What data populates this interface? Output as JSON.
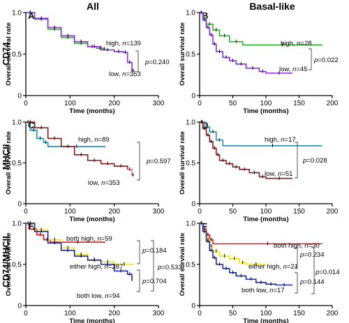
{
  "column_titles": [
    "All",
    "Basal-like"
  ],
  "row_titles": [
    "CD74",
    "MHCII",
    "CD74/MHCII"
  ],
  "colors": {
    "green": "#22b522",
    "purple": "#8a2be2",
    "teal": "#1d8fb0",
    "darkred": "#8b1a1a",
    "pink": "#f07a8a",
    "red": "#e8141a",
    "yellow": "#f2e600",
    "navy": "#1a2aa0",
    "black": "#000000"
  },
  "chart_data": [
    {
      "type": "line",
      "panel": "A",
      "title": "",
      "xlabel": "Time (months)",
      "ylabel": "Overall survival rate",
      "xlim": [
        0,
        300
      ],
      "ylim": [
        0,
        1.0
      ],
      "xticks": [
        0,
        100,
        200,
        300
      ],
      "yticks": [
        0,
        0.5,
        1.0
      ],
      "series": [
        {
          "name": "high, n=139",
          "color": "#22b522",
          "x": [
            0,
            20,
            50,
            80,
            110,
            140,
            160,
            175,
            180
          ],
          "y": [
            1.0,
            0.92,
            0.8,
            0.7,
            0.63,
            0.59,
            0.57,
            0.56,
            0.56
          ]
        },
        {
          "name": "low, n=353",
          "color": "#8a2be2",
          "x": [
            0,
            20,
            50,
            80,
            110,
            140,
            170,
            200,
            220,
            230,
            240,
            245
          ],
          "y": [
            1.0,
            0.93,
            0.82,
            0.72,
            0.65,
            0.59,
            0.55,
            0.53,
            0.52,
            0.4,
            0.3,
            0.3
          ]
        }
      ],
      "annotations": [
        {
          "text": "high, ",
          "n": "n",
          "rest": "=139"
        },
        {
          "text": "low, ",
          "n": "n",
          "rest": "=353"
        },
        {
          "p": "p",
          "rest": "=0.240"
        }
      ]
    },
    {
      "type": "line",
      "panel": "B",
      "title": "",
      "xlabel": "Time (months)",
      "ylabel": "Overall survival rate",
      "xlim": [
        0,
        200
      ],
      "ylim": [
        0,
        1.0
      ],
      "xticks": [
        0,
        50,
        100,
        150,
        200
      ],
      "yticks": [
        0,
        0.5,
        1.0
      ],
      "series": [
        {
          "name": "high, n=28",
          "color": "#22b522",
          "x": [
            0,
            5,
            10,
            20,
            30,
            45,
            65,
            185
          ],
          "y": [
            1.0,
            0.93,
            0.86,
            0.79,
            0.72,
            0.65,
            0.61,
            0.61
          ]
        },
        {
          "name": "low, n=45",
          "color": "#8a2be2",
          "x": [
            0,
            5,
            10,
            15,
            20,
            25,
            35,
            45,
            55,
            70,
            90,
            100,
            140
          ],
          "y": [
            1.0,
            0.91,
            0.82,
            0.73,
            0.62,
            0.53,
            0.46,
            0.42,
            0.38,
            0.33,
            0.29,
            0.27,
            0.27
          ]
        }
      ],
      "annotations": [
        {
          "text": "high, ",
          "n": "n",
          "rest": "=28"
        },
        {
          "text": "low, ",
          "n": "n",
          "rest": "=45"
        },
        {
          "p": "p",
          "rest": "=0.022"
        }
      ]
    },
    {
      "type": "line",
      "panel": "C",
      "title": "",
      "xlabel": "Time (months)",
      "ylabel": "Overall survival rate",
      "xlim": [
        0,
        300
      ],
      "ylim": [
        0,
        1.0
      ],
      "xticks": [
        0,
        100,
        200,
        300
      ],
      "yticks": [
        0,
        0.5,
        1.0
      ],
      "series": [
        {
          "name": "high, n=89",
          "color": "#1d8fb0",
          "x": [
            0,
            10,
            25,
            40,
            50,
            180
          ],
          "y": [
            1.0,
            0.9,
            0.8,
            0.75,
            0.7,
            0.7
          ]
        },
        {
          "name": "low, n=353",
          "color": "#8b1a1a",
          "x": [
            0,
            20,
            50,
            80,
            110,
            140,
            170,
            200,
            230
          ],
          "y": [
            1.0,
            0.93,
            0.8,
            0.7,
            0.6,
            0.53,
            0.49,
            0.46,
            0.42
          ]
        },
        {
          "name": "",
          "color": "#f07a8a",
          "x": [
            230,
            240,
            245
          ],
          "y": [
            0.42,
            0.35,
            0.35
          ]
        }
      ],
      "annotations": [
        {
          "text": "high, ",
          "n": "n",
          "rest": "=89"
        },
        {
          "text": "low, ",
          "n": "n",
          "rest": "=353"
        },
        {
          "p": "p",
          "rest": "=0.597"
        }
      ]
    },
    {
      "type": "line",
      "panel": "D",
      "title": "",
      "xlabel": "Time (months)",
      "ylabel": "Overall survival rate",
      "xlim": [
        0,
        200
      ],
      "ylim": [
        0,
        1.0
      ],
      "xticks": [
        0,
        50,
        100,
        150,
        200
      ],
      "yticks": [
        0,
        0.5,
        1.0
      ],
      "series": [
        {
          "name": "high, n=17",
          "color": "#1d8fb0",
          "x": [
            0,
            8,
            15,
            25,
            35,
            185
          ],
          "y": [
            1.0,
            0.94,
            0.88,
            0.78,
            0.71,
            0.71
          ]
        },
        {
          "name": "low, n=51",
          "color": "#8b1a1a",
          "x": [
            0,
            5,
            10,
            15,
            20,
            25,
            30,
            40,
            50,
            60,
            75,
            90,
            100,
            140
          ],
          "y": [
            1.0,
            0.92,
            0.84,
            0.76,
            0.68,
            0.6,
            0.53,
            0.49,
            0.45,
            0.42,
            0.38,
            0.33,
            0.31,
            0.31
          ]
        }
      ],
      "annotations": [
        {
          "text": "high, ",
          "n": "n",
          "rest": "=17"
        },
        {
          "text": "low, ",
          "n": "n",
          "rest": "=51"
        },
        {
          "p": "p",
          "rest": "=0.028"
        }
      ]
    },
    {
      "type": "line",
      "panel": "E",
      "title": "",
      "xlabel": "Time (months)",
      "ylabel": "Overall survival rate",
      "xlim": [
        0,
        300
      ],
      "ylim": [
        0,
        1.0
      ],
      "xticks": [
        0,
        100,
        200,
        300
      ],
      "yticks": [
        0,
        0.5,
        1.0
      ],
      "series": [
        {
          "name": "both high, n=59",
          "color": "#e8141a",
          "x": [
            0,
            10,
            25,
            40,
            55,
            180
          ],
          "y": [
            1.0,
            0.93,
            0.86,
            0.8,
            0.77,
            0.77
          ]
        },
        {
          "name": "either high, n=287",
          "color": "#f2e600",
          "x": [
            0,
            20,
            50,
            80,
            110,
            140,
            170,
            200,
            245
          ],
          "y": [
            1.0,
            0.92,
            0.8,
            0.7,
            0.62,
            0.56,
            0.53,
            0.5,
            0.5
          ]
        },
        {
          "name": "both low, n=94",
          "color": "#1a2aa0",
          "x": [
            0,
            20,
            50,
            80,
            110,
            140,
            170,
            200,
            230,
            240
          ],
          "y": [
            1.0,
            0.9,
            0.76,
            0.67,
            0.6,
            0.55,
            0.5,
            0.42,
            0.38,
            0.3
          ]
        }
      ],
      "annotations": [
        {
          "text": "both high, ",
          "n": "n",
          "rest": "=59"
        },
        {
          "text": "either high, ",
          "n": "n",
          "rest": "=287"
        },
        {
          "text": "both low, ",
          "n": "n",
          "rest": "=94"
        },
        {
          "p": "p",
          "rest": "=0.184"
        },
        {
          "p": "p",
          "rest": "=0.704"
        },
        {
          "p": "p",
          "rest": "=0.533"
        }
      ]
    },
    {
      "type": "line",
      "panel": "F",
      "title": "",
      "xlabel": "Time (months)",
      "ylabel": "Overall survival rate",
      "xlim": [
        0,
        200
      ],
      "ylim": [
        0,
        1.0
      ],
      "xticks": [
        0,
        50,
        100,
        150,
        200
      ],
      "yticks": [
        0,
        0.5,
        1.0
      ],
      "series": [
        {
          "name": "both high, n=30",
          "color": "#e8141a",
          "x": [
            0,
            5,
            10,
            15,
            20,
            185
          ],
          "y": [
            1.0,
            0.93,
            0.86,
            0.8,
            0.75,
            0.75
          ]
        },
        {
          "name": "either high, n=21",
          "color": "#f2e600",
          "x": [
            0,
            5,
            10,
            15,
            20,
            30,
            45,
            60,
            70,
            100
          ],
          "y": [
            1.0,
            0.9,
            0.8,
            0.72,
            0.66,
            0.6,
            0.57,
            0.52,
            0.5,
            0.5
          ]
        },
        {
          "name": "both low, n=17",
          "color": "#1a2aa0",
          "x": [
            0,
            5,
            10,
            15,
            20,
            25,
            35,
            45,
            55,
            70,
            85,
            100,
            115,
            140
          ],
          "y": [
            1.0,
            0.9,
            0.78,
            0.67,
            0.58,
            0.5,
            0.45,
            0.4,
            0.36,
            0.32,
            0.28,
            0.26,
            0.25,
            0.25
          ]
        }
      ],
      "annotations": [
        {
          "text": "both high, ",
          "n": "n",
          "rest": "=30"
        },
        {
          "text": "either high, ",
          "n": "n",
          "rest": "=21"
        },
        {
          "text": "both low, ",
          "n": "n",
          "rest": "=17"
        },
        {
          "p": "p",
          "rest": "=0.234"
        },
        {
          "p": "p",
          "rest": "=0.144"
        },
        {
          "p": "p",
          "rest": "=0.014"
        }
      ]
    }
  ]
}
